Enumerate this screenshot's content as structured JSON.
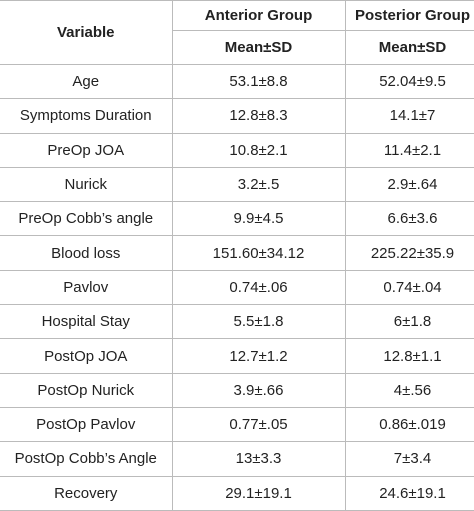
{
  "header": {
    "variable": "Variable",
    "groups": [
      "Anterior Group",
      "Posterior Group"
    ],
    "stats": [
      "Mean±SD",
      "Mean±SD"
    ]
  },
  "table": {
    "rows": [
      [
        "Age",
        "53.1±8.8",
        "52.04±9.5"
      ],
      [
        "Symptoms Duration",
        "12.8±8.3",
        "14.1±7"
      ],
      [
        "PreOp JOA",
        "10.8±2.1",
        "11.4±2.1"
      ],
      [
        "Nurick",
        "3.2±.5",
        "2.9±.64"
      ],
      [
        "PreOp Cobb’s angle",
        "9.9±4.5",
        "6.6±3.6"
      ],
      [
        "Blood loss",
        "151.60±34.12",
        "225.22±35.9"
      ],
      [
        "Pavlov",
        "0.74±.06",
        "0.74±.04"
      ],
      [
        "Hospital Stay",
        "5.5±1.8",
        "6±1.8"
      ],
      [
        "PostOp JOA",
        "12.7±1.2",
        "12.8±1.1"
      ],
      [
        "PostOp Nurick",
        "3.9±.66",
        "4±.56"
      ],
      [
        "PostOp Pavlov",
        "0.77±.05",
        "0.86±.019"
      ],
      [
        "PostOp Cobb’s Angle",
        "13±3.3",
        "7±3.4"
      ],
      [
        "Recovery",
        "29.1±19.1",
        "24.6±19.1"
      ]
    ]
  }
}
